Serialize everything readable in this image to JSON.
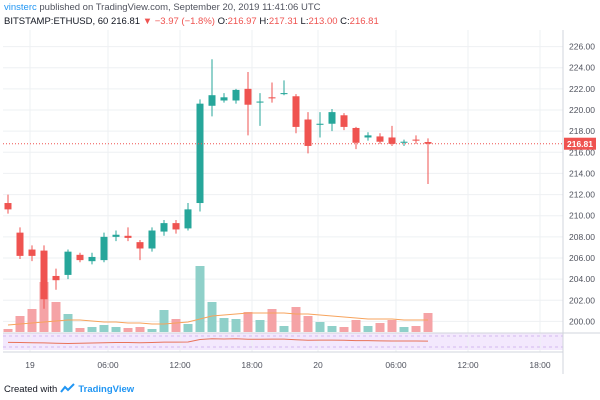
{
  "header": {
    "user": "vinsterc",
    "published_text": "published on TradingView.com, September 20, 2019 11:41:06 UTC",
    "symbol": "BITSTAMP:ETHUSD, 60",
    "last": "216.81",
    "change": "−3.97 (−1.8%)",
    "open_label": "O:",
    "open": "216.97",
    "high_label": "H:",
    "high": "217.31",
    "low_label": "L:",
    "low": "213.00",
    "close_label": "C:",
    "close": "216.81"
  },
  "footer": {
    "created_with": "Created with",
    "brand": "TradingView"
  },
  "colors": {
    "up": "#26a69a",
    "down": "#ef5350",
    "vol_up": "#8fd0c9",
    "vol_down": "#f5a3a6",
    "grid": "#eef0f3",
    "axis_text": "#50535e",
    "price_line": "#ef5350",
    "ma_line": "#f7a35c",
    "rsi_line": "#e8735a",
    "rsi_fill": "#f3e8fd"
  },
  "chart_data": {
    "type": "candlestick",
    "timeframe": "60",
    "ylim": [
      199,
      227
    ],
    "y_ticks": [
      "200.00",
      "202.00",
      "204.00",
      "206.00",
      "208.00",
      "210.00",
      "212.00",
      "214.00",
      "216.00",
      "218.00",
      "220.00",
      "222.00",
      "224.00",
      "226.00"
    ],
    "x_tick_labels": [
      "19",
      "06:00",
      "12:00",
      "18:00",
      "20",
      "06:00",
      "12:00",
      "18:00"
    ],
    "last_price_label": "216.81",
    "last_price": 216.81,
    "candles": [
      {
        "o": 211.2,
        "h": 212.0,
        "l": 210.2,
        "c": 210.6,
        "v": 0.3
      },
      {
        "o": 208.4,
        "h": 208.9,
        "l": 205.9,
        "c": 206.2,
        "v": 1.6
      },
      {
        "o": 206.8,
        "h": 207.2,
        "l": 205.7,
        "c": 206.2,
        "v": 2.3
      },
      {
        "o": 206.7,
        "h": 207.2,
        "l": 201.2,
        "c": 202.1,
        "v": 5.0
      },
      {
        "o": 204.3,
        "h": 205.0,
        "l": 203.0,
        "c": 203.9,
        "v": 3.0
      },
      {
        "o": 204.4,
        "h": 206.8,
        "l": 204.0,
        "c": 206.6,
        "v": 1.8
      },
      {
        "o": 206.3,
        "h": 206.5,
        "l": 205.6,
        "c": 205.8,
        "v": 0.4
      },
      {
        "o": 205.7,
        "h": 206.5,
        "l": 205.4,
        "c": 206.1,
        "v": 0.5
      },
      {
        "o": 205.8,
        "h": 208.4,
        "l": 205.6,
        "c": 208.0,
        "v": 0.7
      },
      {
        "o": 208.0,
        "h": 208.6,
        "l": 207.6,
        "c": 208.2,
        "v": 0.5
      },
      {
        "o": 208.1,
        "h": 208.9,
        "l": 207.6,
        "c": 207.9,
        "v": 0.4
      },
      {
        "o": 207.5,
        "h": 207.7,
        "l": 205.8,
        "c": 206.9,
        "v": 0.5
      },
      {
        "o": 206.9,
        "h": 208.9,
        "l": 206.6,
        "c": 208.6,
        "v": 0.3
      },
      {
        "o": 208.5,
        "h": 209.6,
        "l": 208.1,
        "c": 209.3,
        "v": 2.2
      },
      {
        "o": 209.3,
        "h": 209.6,
        "l": 208.3,
        "c": 208.7,
        "v": 1.3
      },
      {
        "o": 208.8,
        "h": 211.2,
        "l": 208.6,
        "c": 210.6,
        "v": 0.8
      },
      {
        "o": 211.2,
        "h": 221.0,
        "l": 210.4,
        "c": 220.6,
        "v": 6.6
      },
      {
        "o": 220.4,
        "h": 224.8,
        "l": 219.4,
        "c": 221.4,
        "v": 3.0
      },
      {
        "o": 220.9,
        "h": 221.6,
        "l": 220.7,
        "c": 221.2,
        "v": 1.4
      },
      {
        "o": 220.9,
        "h": 222.0,
        "l": 220.6,
        "c": 221.9,
        "v": 1.3
      },
      {
        "o": 222.0,
        "h": 223.6,
        "l": 217.6,
        "c": 220.5,
        "v": 2.0
      },
      {
        "o": 220.7,
        "h": 221.6,
        "l": 218.5,
        "c": 220.8,
        "v": 1.2
      },
      {
        "o": 221.2,
        "h": 222.6,
        "l": 220.7,
        "c": 221.1,
        "v": 2.3
      },
      {
        "o": 221.5,
        "h": 222.8,
        "l": 221.4,
        "c": 221.6,
        "v": 0.6
      },
      {
        "o": 221.3,
        "h": 221.5,
        "l": 217.8,
        "c": 218.4,
        "v": 2.5
      },
      {
        "o": 219.1,
        "h": 219.8,
        "l": 215.9,
        "c": 216.6,
        "v": 1.6
      },
      {
        "o": 218.6,
        "h": 219.8,
        "l": 217.4,
        "c": 218.7,
        "v": 1.0
      },
      {
        "o": 218.7,
        "h": 220.1,
        "l": 218.0,
        "c": 219.8,
        "v": 0.6
      },
      {
        "o": 219.5,
        "h": 219.7,
        "l": 218.1,
        "c": 218.4,
        "v": 0.5
      },
      {
        "o": 218.3,
        "h": 218.4,
        "l": 216.3,
        "c": 216.9,
        "v": 1.2
      },
      {
        "o": 217.4,
        "h": 217.9,
        "l": 217.1,
        "c": 217.6,
        "v": 0.6
      },
      {
        "o": 217.5,
        "h": 217.8,
        "l": 216.8,
        "c": 217.0,
        "v": 0.9
      },
      {
        "o": 217.4,
        "h": 218.5,
        "l": 216.6,
        "c": 216.8,
        "v": 1.2
      },
      {
        "o": 216.9,
        "h": 217.2,
        "l": 216.6,
        "c": 217.0,
        "v": 0.5
      },
      {
        "o": 217.2,
        "h": 217.6,
        "l": 216.8,
        "c": 217.1,
        "v": 0.6
      },
      {
        "o": 216.97,
        "h": 217.31,
        "l": 213.0,
        "c": 216.81,
        "v": 1.9
      }
    ],
    "volume_ma": [
      0.7,
      0.8,
      0.9,
      1.0,
      1.1,
      1.2,
      1.2,
      1.1,
      1.0,
      1.0,
      0.9,
      0.9,
      0.8,
      0.8,
      0.9,
      1.0,
      1.3,
      1.6,
      1.7,
      1.8,
      1.9,
      1.9,
      1.9,
      1.9,
      1.8,
      1.8,
      1.7,
      1.6,
      1.5,
      1.4,
      1.3,
      1.3,
      1.3,
      1.2,
      1.2,
      1.2
    ],
    "rsi": [
      0.45,
      0.44,
      0.43,
      0.42,
      0.4,
      0.38,
      0.4,
      0.41,
      0.43,
      0.44,
      0.44,
      0.43,
      0.44,
      0.46,
      0.46,
      0.47,
      0.62,
      0.66,
      0.65,
      0.66,
      0.63,
      0.63,
      0.64,
      0.64,
      0.6,
      0.57,
      0.58,
      0.58,
      0.57,
      0.55,
      0.55,
      0.54,
      0.53,
      0.53,
      0.53,
      0.52
    ]
  }
}
